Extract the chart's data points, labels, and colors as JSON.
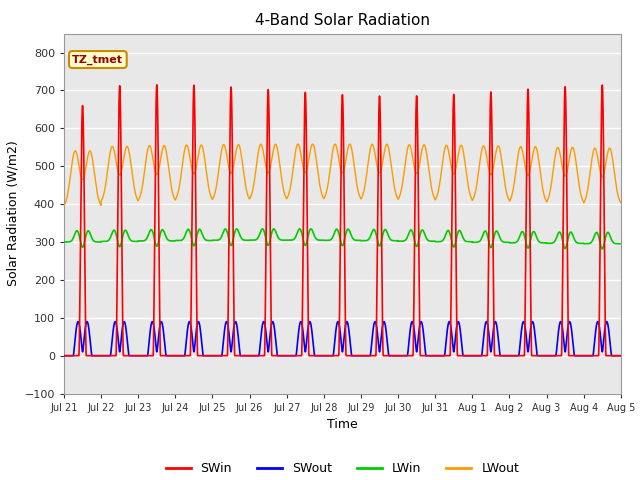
{
  "title": "4-Band Solar Radiation",
  "xlabel": "Time",
  "ylabel": "Solar Radiation (W/m2)",
  "ylim": [
    -100,
    850
  ],
  "yticks": [
    -100,
    0,
    100,
    200,
    300,
    400,
    500,
    600,
    700,
    800
  ],
  "xlim": [
    0,
    15
  ],
  "xtick_labels": [
    "Jul 21",
    "Jul 22",
    "Jul 23",
    "Jul 24",
    "Jul 25",
    "Jul 26",
    "Jul 27",
    "Jul 28",
    "Jul 29",
    "Jul 30",
    "Jul 31",
    "Aug 1",
    "Aug 2",
    "Aug 3",
    "Aug 4",
    "Aug 5"
  ],
  "series_colors": {
    "SWin": "#ff0000",
    "SWout": "#0000ff",
    "LWin": "#00cc00",
    "LWout": "#ff9900"
  },
  "annotation_text": "TZ_tmet",
  "annotation_bg": "#ffffcc",
  "annotation_border": "#cc8800",
  "bg_color": "#e0e0e0",
  "grid_color": "#c8c8c8",
  "n_days": 15,
  "dt": 0.002
}
